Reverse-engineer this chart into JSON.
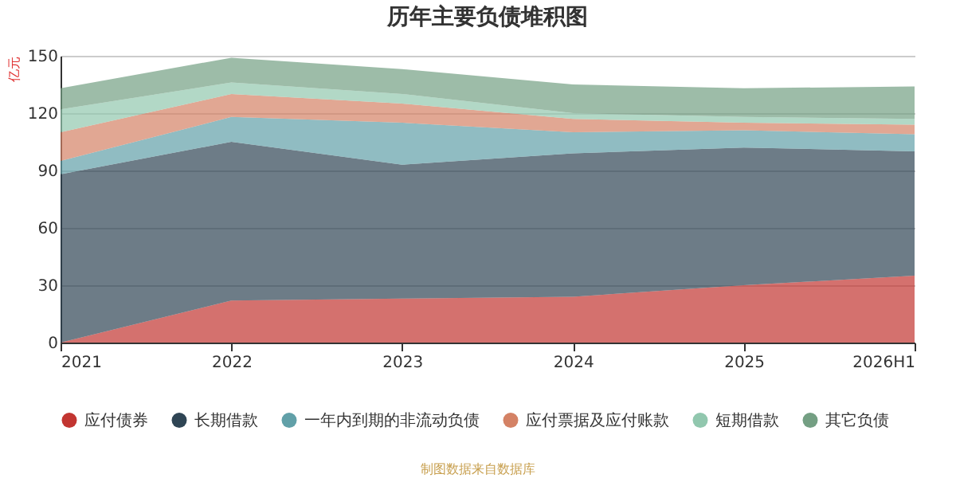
{
  "chart_data": {
    "type": "area",
    "title": "历年主要负债堆积图",
    "ylabel": "亿元",
    "categories": [
      "2021",
      "2022",
      "2023",
      "2024",
      "2025",
      "2026H1"
    ],
    "stacked": true,
    "ylim": [
      0,
      150
    ],
    "yticks": [
      0,
      30,
      60,
      90,
      120,
      150
    ],
    "grid": "y",
    "legend": "bottom",
    "series": [
      {
        "name": "应付债券",
        "color": "#c23531",
        "values": [
          0,
          22,
          23,
          24,
          30,
          35
        ]
      },
      {
        "name": "长期借款",
        "color": "#2f4554",
        "values": [
          88,
          83,
          70,
          75,
          72,
          65
        ]
      },
      {
        "name": "一年内到期的非流动负债",
        "color": "#61a0a8",
        "values": [
          7,
          13,
          22,
          11,
          9,
          9
        ]
      },
      {
        "name": "应付票据及应付账款",
        "color": "#d48265",
        "values": [
          15,
          12,
          10,
          7,
          4,
          5
        ]
      },
      {
        "name": "短期借款",
        "color": "#91c7ae",
        "values": [
          12,
          6,
          5,
          3,
          3,
          3
        ]
      },
      {
        "name": "其它负债",
        "color": "#749f83",
        "values": [
          11,
          13,
          13,
          15,
          15,
          17
        ]
      }
    ],
    "annotations": [
      "制图数据来自数据库"
    ]
  }
}
